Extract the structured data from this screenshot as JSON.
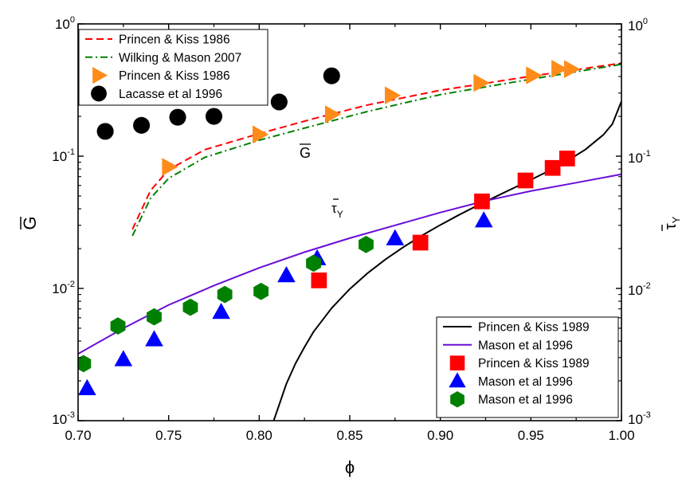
{
  "chart_data": {
    "type": "scatter",
    "xlabel": "ϕ",
    "ylabel_left": "G",
    "ylabel_right": "τY",
    "xlim": [
      0.7,
      1.0
    ],
    "ylim": [
      0.001,
      1
    ],
    "yscale": "log",
    "x_ticks": [
      "0.70",
      "0.75",
      "0.80",
      "0.85",
      "0.90",
      "0.95",
      "1.00"
    ],
    "y_ticks": [
      {
        "base": "10",
        "exp": "-3"
      },
      {
        "base": "10",
        "exp": "-2"
      },
      {
        "base": "10",
        "exp": "-1"
      },
      {
        "base": "10",
        "exp": "0"
      }
    ],
    "annotations": [
      {
        "text": "G",
        "x": 0.82,
        "y": 0.086,
        "overbar": true
      },
      {
        "text": "τY",
        "x": 0.838,
        "y": 0.035,
        "overbar": true
      }
    ],
    "series": [
      {
        "name": "Princen & Kiss 1986",
        "kind": "line",
        "dash": "dashed",
        "color": "#ff0000",
        "x": [
          0.73,
          0.74,
          0.75,
          0.77,
          0.8,
          0.83,
          0.86,
          0.9,
          0.95,
          1.0
        ],
        "y": [
          0.028,
          0.055,
          0.079,
          0.112,
          0.148,
          0.192,
          0.244,
          0.315,
          0.402,
          0.505
        ]
      },
      {
        "name": "Wilking & Mason 2007",
        "kind": "line",
        "dash": "dashdot",
        "color": "#008000",
        "x": [
          0.73,
          0.74,
          0.75,
          0.77,
          0.8,
          0.83,
          0.86,
          0.9,
          0.95,
          1.0
        ],
        "y": [
          0.025,
          0.048,
          0.068,
          0.098,
          0.132,
          0.17,
          0.218,
          0.292,
          0.382,
          0.495
        ]
      },
      {
        "name": "Princen & Kiss 1986",
        "kind": "marker",
        "marker": "triangle-right",
        "color": "#ff8c1a",
        "x": [
          0.75,
          0.8,
          0.84,
          0.873,
          0.922,
          0.951,
          0.965,
          0.972
        ],
        "y": [
          0.083,
          0.146,
          0.207,
          0.288,
          0.358,
          0.408,
          0.457,
          0.455
        ]
      },
      {
        "name": "Lacasse et al 1996",
        "kind": "marker",
        "marker": "circle",
        "color": "#000000",
        "x": [
          0.715,
          0.735,
          0.755,
          0.775,
          0.811,
          0.84
        ],
        "y": [
          0.154,
          0.171,
          0.197,
          0.2,
          0.257,
          0.405
        ]
      },
      {
        "name": "Princen & Kiss 1989",
        "kind": "line",
        "dash": "solid",
        "color": "#000000",
        "x": [
          0.808,
          0.81,
          0.815,
          0.82,
          0.825,
          0.83,
          0.84,
          0.85,
          0.86,
          0.87,
          0.88,
          0.89,
          0.9,
          0.91,
          0.92,
          0.93,
          0.94,
          0.95,
          0.96,
          0.97,
          0.98,
          0.99,
          0.995,
          1.0
        ],
        "y": [
          0.001,
          0.0012,
          0.0019,
          0.0027,
          0.0036,
          0.0047,
          0.0071,
          0.0099,
          0.0131,
          0.0167,
          0.0207,
          0.0252,
          0.0302,
          0.0358,
          0.042,
          0.049,
          0.057,
          0.0663,
          0.0775,
          0.092,
          0.112,
          0.145,
          0.175,
          0.26
        ]
      },
      {
        "name": "Mason et al 1996",
        "kind": "line",
        "dash": "solid",
        "color": "#6a0dd8",
        "x": [
          0.7,
          0.725,
          0.75,
          0.775,
          0.8,
          0.825,
          0.85,
          0.875,
          0.9,
          0.925,
          0.95,
          0.975,
          1.0
        ],
        "y": [
          0.0032,
          0.005,
          0.0075,
          0.0105,
          0.0143,
          0.0188,
          0.024,
          0.03,
          0.0375,
          0.046,
          0.0545,
          0.063,
          0.073
        ]
      },
      {
        "name": "Princen & Kiss 1989",
        "kind": "marker",
        "marker": "square",
        "color": "#ff0000",
        "x": [
          0.833,
          0.889,
          0.923,
          0.947,
          0.962,
          0.97
        ],
        "y": [
          0.0115,
          0.0222,
          0.0455,
          0.0655,
          0.0815,
          0.096
        ]
      },
      {
        "name": "Mason et al 1996",
        "kind": "marker",
        "marker": "triangle-up",
        "color": "#0000ff",
        "x": [
          0.705,
          0.725,
          0.742,
          0.779,
          0.815,
          0.832,
          0.875,
          0.924
        ],
        "y": [
          0.00175,
          0.0029,
          0.0041,
          0.0066,
          0.0125,
          0.0168,
          0.0238,
          0.0325
        ]
      },
      {
        "name": "Mason et al 1996",
        "kind": "marker",
        "marker": "hexagon",
        "color": "#008000",
        "x": [
          0.703,
          0.722,
          0.742,
          0.762,
          0.781,
          0.801,
          0.83,
          0.859
        ],
        "y": [
          0.0027,
          0.0052,
          0.0061,
          0.0072,
          0.009,
          0.0095,
          0.0155,
          0.0215
        ]
      }
    ],
    "legend_top": [
      0,
      1,
      2,
      3
    ],
    "legend_bottom": [
      4,
      5,
      6,
      7,
      8
    ]
  }
}
